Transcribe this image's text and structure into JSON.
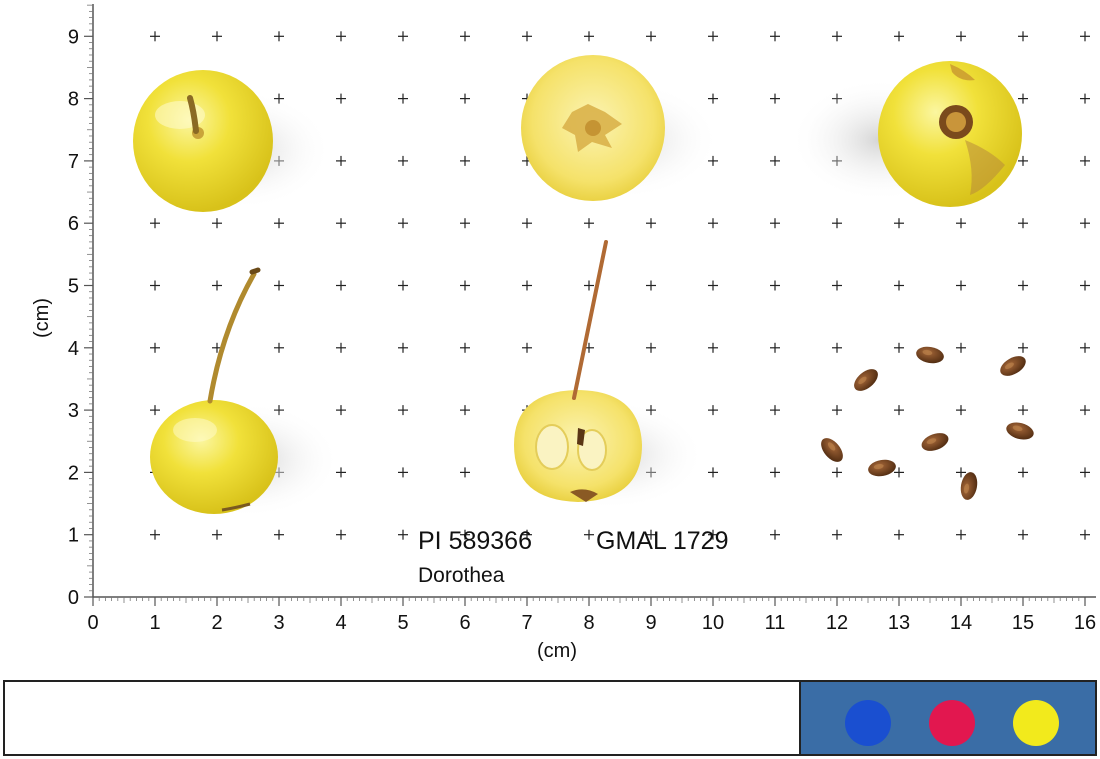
{
  "photo": {
    "accession": "PI 589366",
    "gmal": "GMAL 1729",
    "cultivar": "Dorothea",
    "x_axis_unit": "(cm)",
    "y_axis_unit": "(cm)",
    "x_ticks": [
      "0",
      "1",
      "2",
      "3",
      "4",
      "5",
      "6",
      "7",
      "8",
      "9",
      "10",
      "11",
      "12",
      "13",
      "14",
      "15",
      "16"
    ],
    "y_ticks": [
      "0",
      "1",
      "2",
      "3",
      "4",
      "5",
      "6",
      "7",
      "8",
      "9"
    ],
    "grid_marker_color": "#222222",
    "fruit_color": "#f2e23c",
    "flesh_color": "#f6ed8a",
    "stem_color": "#9a7a2a",
    "seed_color": "#6b3e1c",
    "seed_count": 9
  },
  "color_card": {
    "background": "#3a6da6",
    "swatches": [
      {
        "name": "blue",
        "color": "#1a4fd0"
      },
      {
        "name": "red",
        "color": "#e2174f"
      },
      {
        "name": "yellow",
        "color": "#f2ea1c"
      }
    ]
  }
}
